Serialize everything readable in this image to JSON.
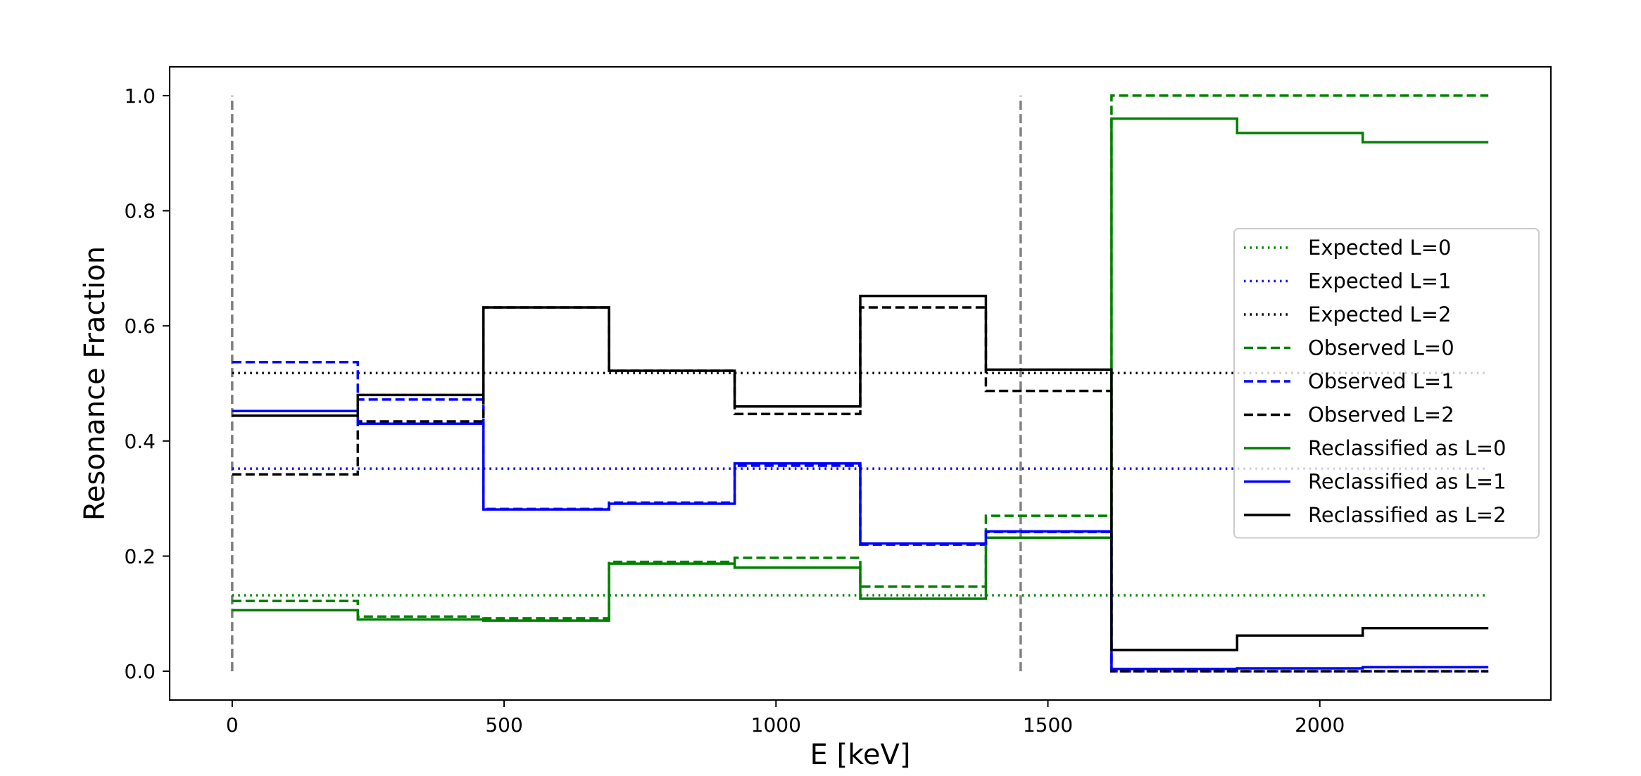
{
  "chart_data": {
    "type": "line",
    "title": "",
    "xlabel": "E [keV]",
    "ylabel": "Resonance Fraction",
    "xlim": [
      -115,
      2425
    ],
    "ylim": [
      -0.05,
      1.05
    ],
    "xticks": [
      0,
      500,
      1000,
      1500,
      2000
    ],
    "xtick_labels": [
      "0",
      "500",
      "1000",
      "1500",
      "2000"
    ],
    "yticks": [
      0.0,
      0.2,
      0.4,
      0.6,
      0.8,
      1.0
    ],
    "ytick_labels": [
      "0.0",
      "0.2",
      "0.4",
      "0.6",
      "0.8",
      "1.0"
    ],
    "grid": false,
    "legend_position": "center-right",
    "bin_edges": [
      0,
      231,
      462,
      693,
      924,
      1155,
      1386,
      1617,
      1848,
      2079,
      2310
    ],
    "series": [
      {
        "name": "Expected L=0",
        "style": "dotted",
        "color": "#008000",
        "kind": "hline",
        "value": 0.132,
        "x_range": [
          0,
          2310
        ]
      },
      {
        "name": "Expected L=1",
        "style": "dotted",
        "color": "#0000ff",
        "kind": "hline",
        "value": 0.352,
        "x_range": [
          0,
          2310
        ]
      },
      {
        "name": "Expected L=2",
        "style": "dotted",
        "color": "#000000",
        "kind": "hline",
        "value": 0.518,
        "x_range": [
          0,
          2310
        ]
      },
      {
        "name": "Observed L=0",
        "style": "dashed",
        "color": "#008000",
        "kind": "step",
        "values": [
          0.122,
          0.095,
          0.092,
          0.19,
          0.197,
          0.147,
          0.27,
          1.0,
          1.0,
          1.0
        ]
      },
      {
        "name": "Observed L=1",
        "style": "dashed",
        "color": "#0000ff",
        "kind": "step",
        "values": [
          0.537,
          0.472,
          0.282,
          0.293,
          0.357,
          0.22,
          0.242,
          0.0,
          0.0,
          0.0
        ]
      },
      {
        "name": "Observed L=2",
        "style": "dashed",
        "color": "#000000",
        "kind": "step",
        "values": [
          0.342,
          0.434,
          0.632,
          0.522,
          0.447,
          0.632,
          0.487,
          0.0,
          0.0,
          0.0
        ]
      },
      {
        "name": "Reclassified as L=0",
        "style": "solid",
        "color": "#008000",
        "kind": "step",
        "values": [
          0.106,
          0.09,
          0.088,
          0.187,
          0.18,
          0.126,
          0.232,
          0.96,
          0.935,
          0.919
        ]
      },
      {
        "name": "Reclassified as L=1",
        "style": "solid",
        "color": "#0000ff",
        "kind": "step",
        "values": [
          0.452,
          0.43,
          0.281,
          0.291,
          0.361,
          0.222,
          0.243,
          0.004,
          0.005,
          0.007
        ]
      },
      {
        "name": "Reclassified as L=2",
        "style": "solid",
        "color": "#000000",
        "kind": "step",
        "values": [
          0.444,
          0.48,
          0.632,
          0.522,
          0.46,
          0.652,
          0.524,
          0.037,
          0.062,
          0.075
        ]
      }
    ],
    "vlines": [
      {
        "x": 0,
        "y_range": [
          0,
          1
        ],
        "style": "dashed",
        "color": "#808080"
      },
      {
        "x": 1450,
        "y_range": [
          0,
          1
        ],
        "style": "dashed",
        "color": "#808080"
      }
    ]
  }
}
